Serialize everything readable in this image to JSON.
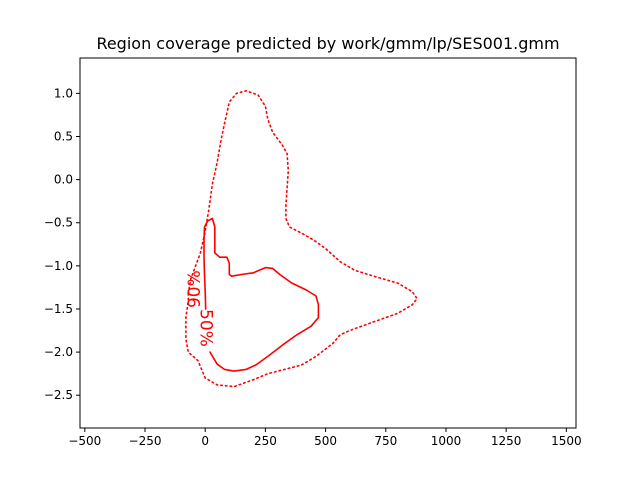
{
  "chart_data": {
    "type": "line",
    "title": "Region coverage predicted by work/gmm/lp/SES001.gmm",
    "xlabel": "",
    "ylabel": "",
    "xlim": [
      -520,
      1540
    ],
    "ylim": [
      -2.88,
      1.41
    ],
    "grid": false,
    "color": "#ff0000",
    "x_ticks": [
      -500,
      -250,
      0,
      250,
      500,
      750,
      1000,
      1250,
      1500
    ],
    "x_tick_labels": [
      "−500",
      "−250",
      "0",
      "250",
      "500",
      "750",
      "1000",
      "1250",
      "1500"
    ],
    "y_ticks": [
      1.0,
      0.5,
      0.0,
      -0.5,
      -1.0,
      -1.5,
      -2.0,
      -2.5
    ],
    "y_tick_labels": [
      "1.0",
      "0.5",
      "0.0",
      "−0.5",
      "−1.0",
      "−1.5",
      "−2.0",
      "−2.5"
    ],
    "series": [
      {
        "label": "90%",
        "style": "dotted",
        "points": [
          [
            -70,
            -1.32
          ],
          [
            -60,
            -1.15
          ],
          [
            -40,
            -1.0
          ],
          [
            -20,
            -0.85
          ],
          [
            0,
            -0.6
          ],
          [
            15,
            -0.35
          ],
          [
            30,
            -0.05
          ],
          [
            50,
            0.2
          ],
          [
            65,
            0.45
          ],
          [
            80,
            0.65
          ],
          [
            100,
            0.9
          ],
          [
            130,
            1.0
          ],
          [
            170,
            1.03
          ],
          [
            220,
            0.98
          ],
          [
            250,
            0.85
          ],
          [
            260,
            0.7
          ],
          [
            280,
            0.55
          ],
          [
            320,
            0.4
          ],
          [
            340,
            0.3
          ],
          [
            345,
            0.1
          ],
          [
            340,
            -0.1
          ],
          [
            335,
            -0.3
          ],
          [
            335,
            -0.45
          ],
          [
            350,
            -0.55
          ],
          [
            400,
            -0.62
          ],
          [
            450,
            -0.7
          ],
          [
            500,
            -0.8
          ],
          [
            560,
            -0.95
          ],
          [
            620,
            -1.05
          ],
          [
            700,
            -1.12
          ],
          [
            800,
            -1.2
          ],
          [
            860,
            -1.3
          ],
          [
            880,
            -1.38
          ],
          [
            860,
            -1.45
          ],
          [
            800,
            -1.55
          ],
          [
            700,
            -1.65
          ],
          [
            600,
            -1.75
          ],
          [
            560,
            -1.8
          ],
          [
            530,
            -1.9
          ],
          [
            460,
            -2.05
          ],
          [
            400,
            -2.15
          ],
          [
            330,
            -2.2
          ],
          [
            260,
            -2.25
          ],
          [
            200,
            -2.32
          ],
          [
            120,
            -2.4
          ],
          [
            50,
            -2.38
          ],
          [
            0,
            -2.3
          ],
          [
            -30,
            -2.1
          ],
          [
            -70,
            -2.0
          ],
          [
            -80,
            -1.85
          ],
          [
            -80,
            -1.6
          ],
          [
            -70,
            -1.4
          ]
        ]
      },
      {
        "label": "50%",
        "style": "solid",
        "points": [
          [
            2,
            -1.5
          ],
          [
            0,
            -1.3
          ],
          [
            -3,
            -1.1
          ],
          [
            -5,
            -0.9
          ],
          [
            -5,
            -0.7
          ],
          [
            -3,
            -0.55
          ],
          [
            10,
            -0.48
          ],
          [
            30,
            -0.45
          ],
          [
            40,
            -0.55
          ],
          [
            40,
            -0.85
          ],
          [
            60,
            -0.9
          ],
          [
            90,
            -0.9
          ],
          [
            100,
            -0.97
          ],
          [
            100,
            -1.1
          ],
          [
            110,
            -1.12
          ],
          [
            150,
            -1.1
          ],
          [
            200,
            -1.08
          ],
          [
            250,
            -1.02
          ],
          [
            280,
            -1.03
          ],
          [
            310,
            -1.1
          ],
          [
            360,
            -1.2
          ],
          [
            420,
            -1.28
          ],
          [
            460,
            -1.35
          ],
          [
            470,
            -1.45
          ],
          [
            470,
            -1.6
          ],
          [
            440,
            -1.7
          ],
          [
            380,
            -1.8
          ],
          [
            320,
            -1.92
          ],
          [
            260,
            -2.05
          ],
          [
            210,
            -2.15
          ],
          [
            170,
            -2.2
          ],
          [
            120,
            -2.22
          ],
          [
            80,
            -2.2
          ],
          [
            50,
            -2.14
          ],
          [
            20,
            -2.0
          ]
        ]
      }
    ],
    "annotations": [
      {
        "text": "90%",
        "x": -42,
        "y": -1.27,
        "rotation": -90
      },
      {
        "text": "50%",
        "x": 2,
        "y": -1.72,
        "rotation": 90
      }
    ]
  }
}
